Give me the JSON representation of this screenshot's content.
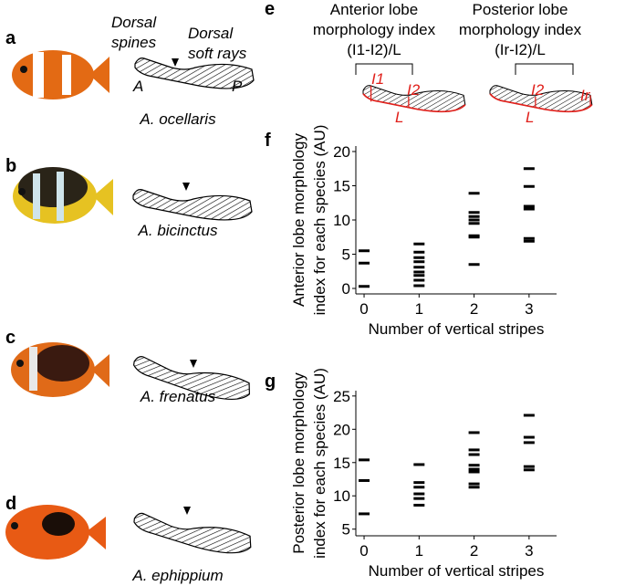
{
  "fish": [
    {
      "label": "a",
      "species": "A. ocellaris"
    },
    {
      "label": "b",
      "species": "A. bicinctus"
    },
    {
      "label": "c",
      "species": "A. frenatus"
    },
    {
      "label": "d",
      "species": "A. ephippium"
    }
  ],
  "fin_labels": {
    "spines": [
      "Dorsal",
      "spines"
    ],
    "rays": [
      "Dorsal",
      "soft rays"
    ],
    "anterior": "A",
    "posterior": "P"
  },
  "panel_e": {
    "label": "e",
    "anterior": [
      "Anterior lobe",
      "morphology index",
      "(I1-I2)/L"
    ],
    "posterior": [
      "Posterior lobe",
      "morphology index",
      "(Ir-I2)/L"
    ],
    "marks_anterior": [
      "I1",
      "I2",
      "L"
    ],
    "marks_posterior": [
      "I2",
      "Ir",
      "L"
    ]
  },
  "chart_data": [
    {
      "type": "strip",
      "panel_label": "f",
      "ylabel": [
        "Anterior lobe morphology",
        "index for each species (AU)"
      ],
      "xlabel": "Number of vertical stripes",
      "categories": [
        0,
        1,
        2,
        3
      ],
      "values": [
        [
          5.5,
          3.7,
          0.3
        ],
        [
          6.5,
          5.3,
          4.5,
          3.9,
          3.1,
          2.4,
          1.9,
          1.2,
          0.4
        ],
        [
          13.9,
          11.1,
          10.5,
          10,
          9.5,
          7.7,
          7.5,
          3.5
        ],
        [
          17.5,
          14.9,
          12,
          11.6,
          7.3,
          6.9
        ]
      ],
      "color": "#000000",
      "xlim": [
        -0.15,
        3.5
      ],
      "ylim": [
        -0.8,
        20.8
      ],
      "yticks": [
        0,
        5,
        10,
        15,
        20
      ]
    },
    {
      "type": "strip",
      "panel_label": "g",
      "ylabel": [
        "Posterior lobe morphology",
        "index for each species (AU)"
      ],
      "xlabel": "Number of vertical stripes",
      "categories": [
        0,
        1,
        2,
        3
      ],
      "values": [
        [
          15.4,
          12.3,
          7.3
        ],
        [
          14.7,
          12,
          11.3,
          10.3,
          9.6,
          8.6
        ],
        [
          19.5,
          16.9,
          16.2,
          14.6,
          14,
          13.6,
          11.8,
          11.3
        ],
        [
          22.1,
          18.8,
          18,
          14.4,
          13.9
        ]
      ],
      "color": "#000000",
      "xlim": [
        -0.15,
        3.5
      ],
      "ylim": [
        4,
        25.8
      ],
      "yticks": [
        5,
        10,
        15,
        20,
        25
      ]
    }
  ]
}
